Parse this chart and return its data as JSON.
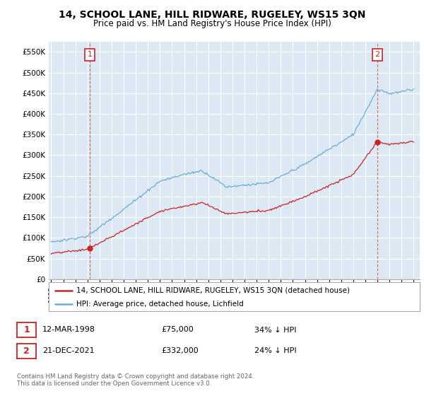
{
  "title": "14, SCHOOL LANE, HILL RIDWARE, RUGELEY, WS15 3QN",
  "subtitle": "Price paid vs. HM Land Registry's House Price Index (HPI)",
  "title_fontsize": 10,
  "subtitle_fontsize": 8.5,
  "ylabel_ticks": [
    "£0",
    "£50K",
    "£100K",
    "£150K",
    "£200K",
    "£250K",
    "£300K",
    "£350K",
    "£400K",
    "£450K",
    "£500K",
    "£550K"
  ],
  "ytick_values": [
    0,
    50000,
    100000,
    150000,
    200000,
    250000,
    300000,
    350000,
    400000,
    450000,
    500000,
    550000
  ],
  "ylim": [
    0,
    575000
  ],
  "xlim_start": 1994.8,
  "xlim_end": 2025.5,
  "hpi_color": "#6baed6",
  "price_color": "#cc2222",
  "sale1_year": 1998.19,
  "sale1_price": 75000,
  "sale2_year": 2021.97,
  "sale2_price": 332000,
  "legend_line1": "14, SCHOOL LANE, HILL RIDWARE, RUGELEY, WS15 3QN (detached house)",
  "legend_line2": "HPI: Average price, detached house, Lichfield",
  "annotation1_date": "12-MAR-1998",
  "annotation1_price": "£75,000",
  "annotation1_hpi": "34% ↓ HPI",
  "annotation2_date": "21-DEC-2021",
  "annotation2_price": "£332,000",
  "annotation2_hpi": "24% ↓ HPI",
  "footer": "Contains HM Land Registry data © Crown copyright and database right 2024.\nThis data is licensed under the Open Government Licence v3.0.",
  "background_color": "#ffffff",
  "plot_bg_color": "#dce9f5",
  "grid_color": "#ffffff"
}
